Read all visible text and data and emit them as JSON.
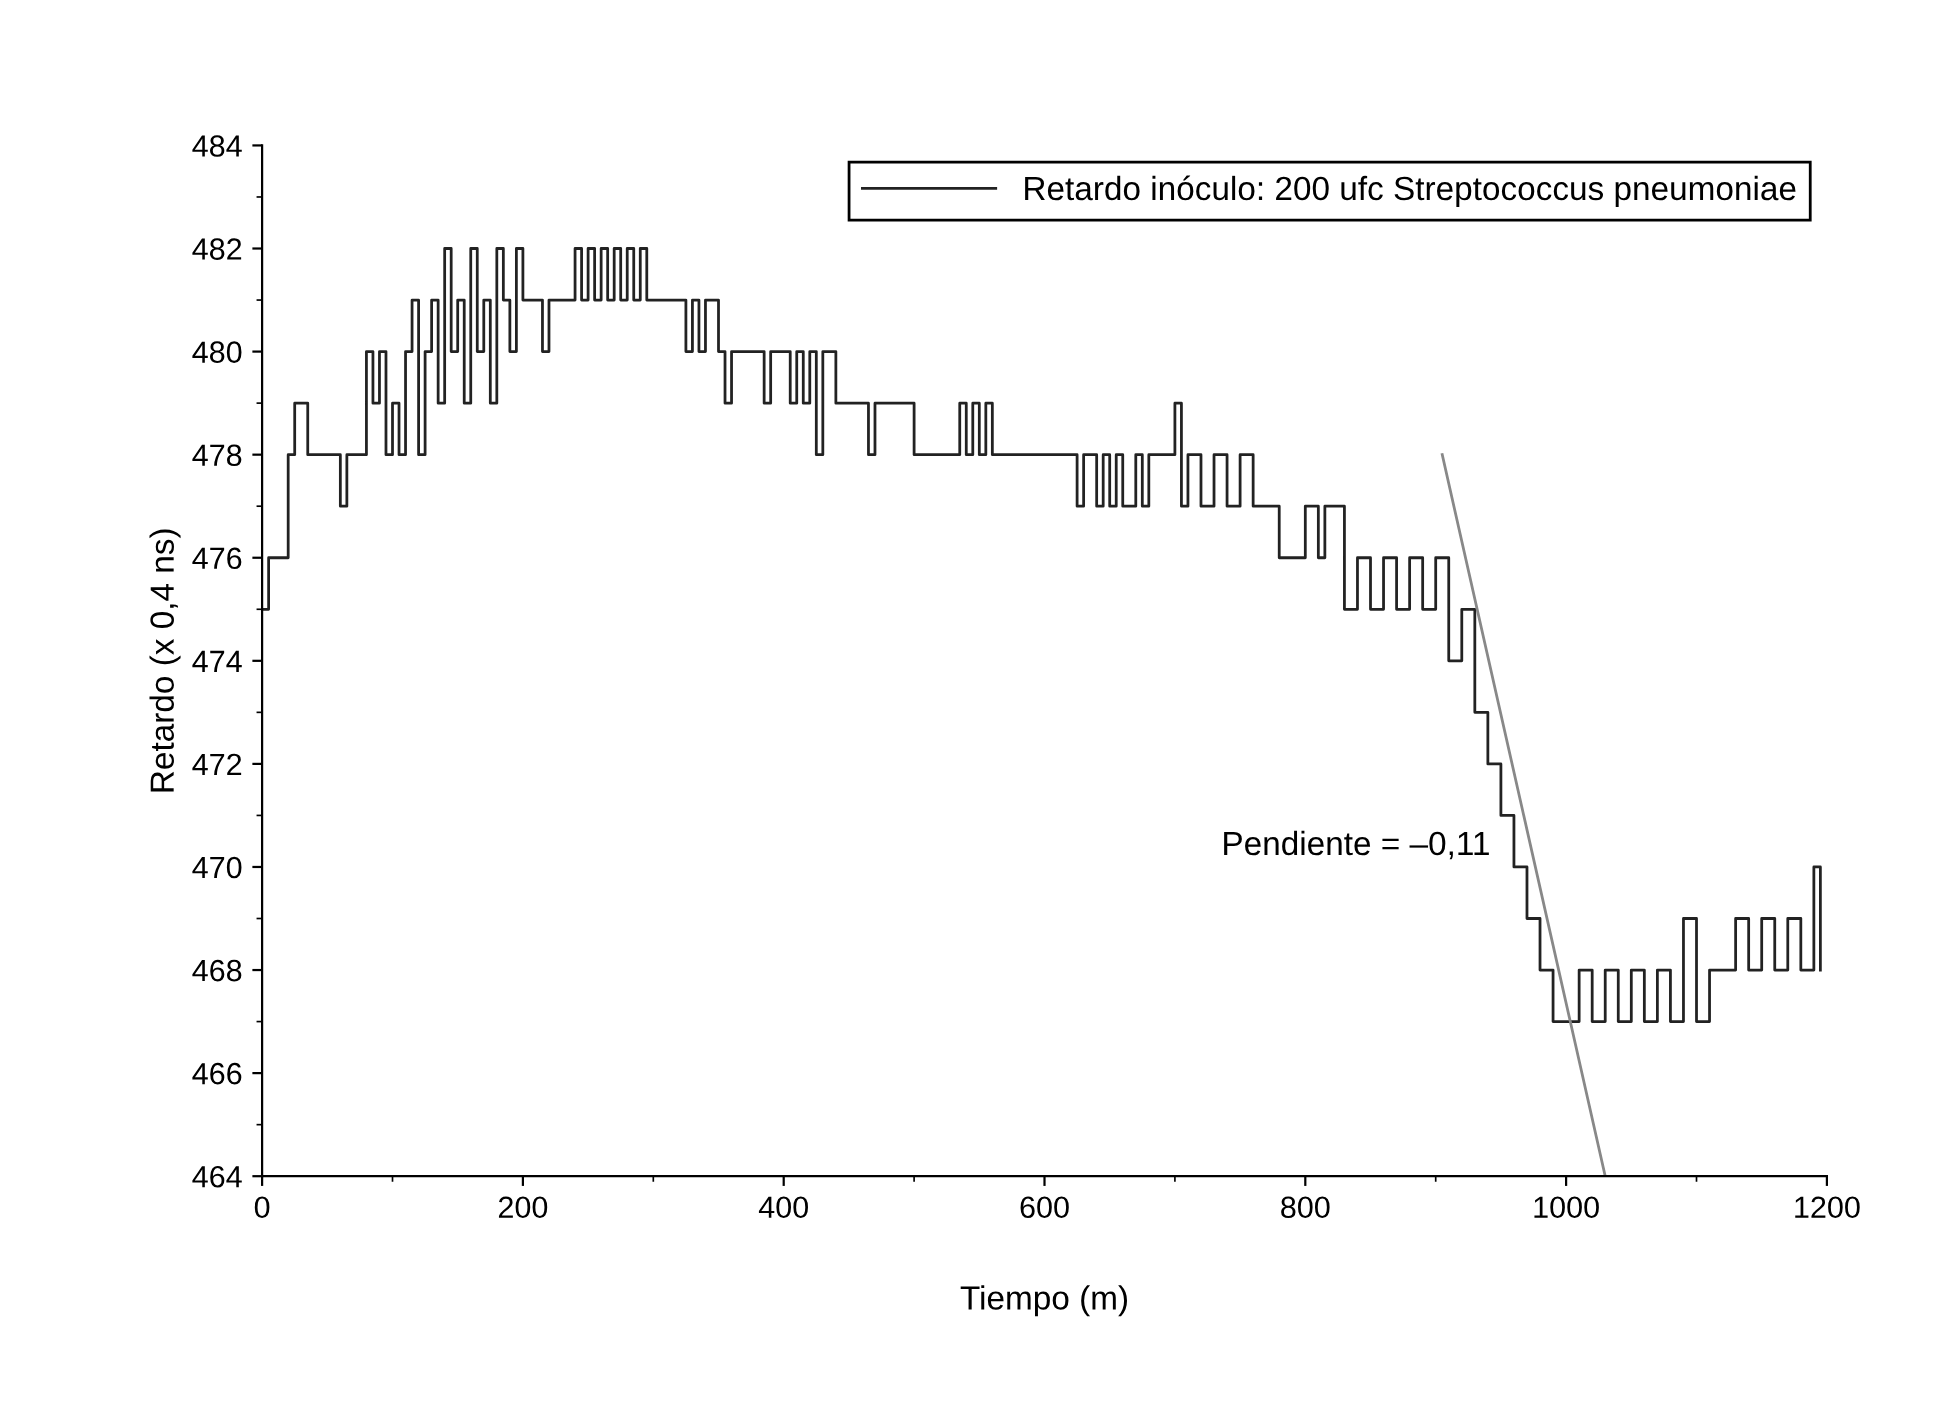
{
  "chart_data": {
    "type": "step",
    "xlabel": "Tiempo (m)",
    "ylabel": "Retardo (x 0,4 ns)",
    "xlim": [
      0,
      1200
    ],
    "xticks": [
      0,
      200,
      400,
      600,
      800,
      1000,
      1200
    ],
    "ylim": [
      464,
      484
    ],
    "yticks": [
      464,
      466,
      468,
      470,
      472,
      474,
      476,
      478,
      480,
      482,
      484
    ],
    "grid": false,
    "legend": "top right",
    "annotations": [
      "Pendiente = –0,11"
    ],
    "series": [
      {
        "name": "Retardo inóculo: 200 ufc Streptococcus pneumoniae",
        "color": "#222222",
        "x": [
          0,
          5,
          10,
          20,
          25,
          35,
          45,
          60,
          65,
          70,
          80,
          85,
          90,
          95,
          100,
          105,
          110,
          115,
          120,
          125,
          130,
          135,
          140,
          145,
          150,
          155,
          160,
          165,
          170,
          175,
          180,
          185,
          190,
          195,
          200,
          210,
          215,
          220,
          230,
          240,
          245,
          250,
          255,
          260,
          265,
          270,
          275,
          280,
          285,
          290,
          295,
          300,
          320,
          325,
          330,
          335,
          340,
          350,
          355,
          360,
          380,
          385,
          390,
          400,
          405,
          410,
          415,
          420,
          425,
          430,
          440,
          460,
          465,
          470,
          480,
          500,
          520,
          530,
          535,
          540,
          545,
          550,
          555,
          560,
          580,
          620,
          625,
          630,
          640,
          645,
          650,
          655,
          660,
          670,
          675,
          680,
          690,
          700,
          705,
          710,
          720,
          730,
          740,
          750,
          760,
          770,
          780,
          800,
          810,
          815,
          820,
          830,
          840,
          850,
          860,
          870,
          880,
          890,
          900,
          910,
          920,
          930,
          940,
          950,
          960,
          970,
          980,
          990,
          1000,
          1010,
          1020,
          1030,
          1040,
          1050,
          1060,
          1070,
          1080,
          1090,
          1100,
          1110,
          1120,
          1130,
          1140,
          1150,
          1160,
          1170,
          1180,
          1190,
          1195
        ],
        "values": [
          475,
          476,
          476,
          478,
          479,
          478,
          478,
          477,
          478,
          478,
          480,
          479,
          480,
          478,
          479,
          478,
          480,
          481,
          478,
          480,
          481,
          479,
          482,
          480,
          481,
          479,
          482,
          480,
          481,
          479,
          482,
          481,
          480,
          482,
          481,
          481,
          480,
          481,
          481,
          482,
          481,
          482,
          481,
          482,
          481,
          482,
          481,
          482,
          481,
          482,
          481,
          481,
          481,
          480,
          481,
          480,
          481,
          480,
          479,
          480,
          480,
          479,
          480,
          480,
          479,
          480,
          479,
          480,
          478,
          480,
          479,
          479,
          478,
          479,
          479,
          478,
          478,
          478,
          479,
          478,
          479,
          478,
          479,
          478,
          478,
          478,
          477,
          478,
          477,
          478,
          477,
          478,
          477,
          478,
          477,
          478,
          478,
          479,
          477,
          478,
          477,
          478,
          477,
          478,
          477,
          477,
          476,
          477,
          476,
          477,
          477,
          475,
          476,
          475,
          476,
          475,
          476,
          475,
          476,
          474,
          475,
          473,
          472,
          471,
          470,
          469,
          468,
          467,
          467,
          468,
          467,
          468,
          467,
          468,
          467,
          468,
          467,
          469,
          467,
          468,
          468,
          469,
          468,
          469,
          468,
          469,
          468,
          470,
          468
        ]
      },
      {
        "color": "#888888",
        "type": "line",
        "x": [
          905,
          1030
        ],
        "values": [
          478,
          464
        ]
      }
    ]
  }
}
